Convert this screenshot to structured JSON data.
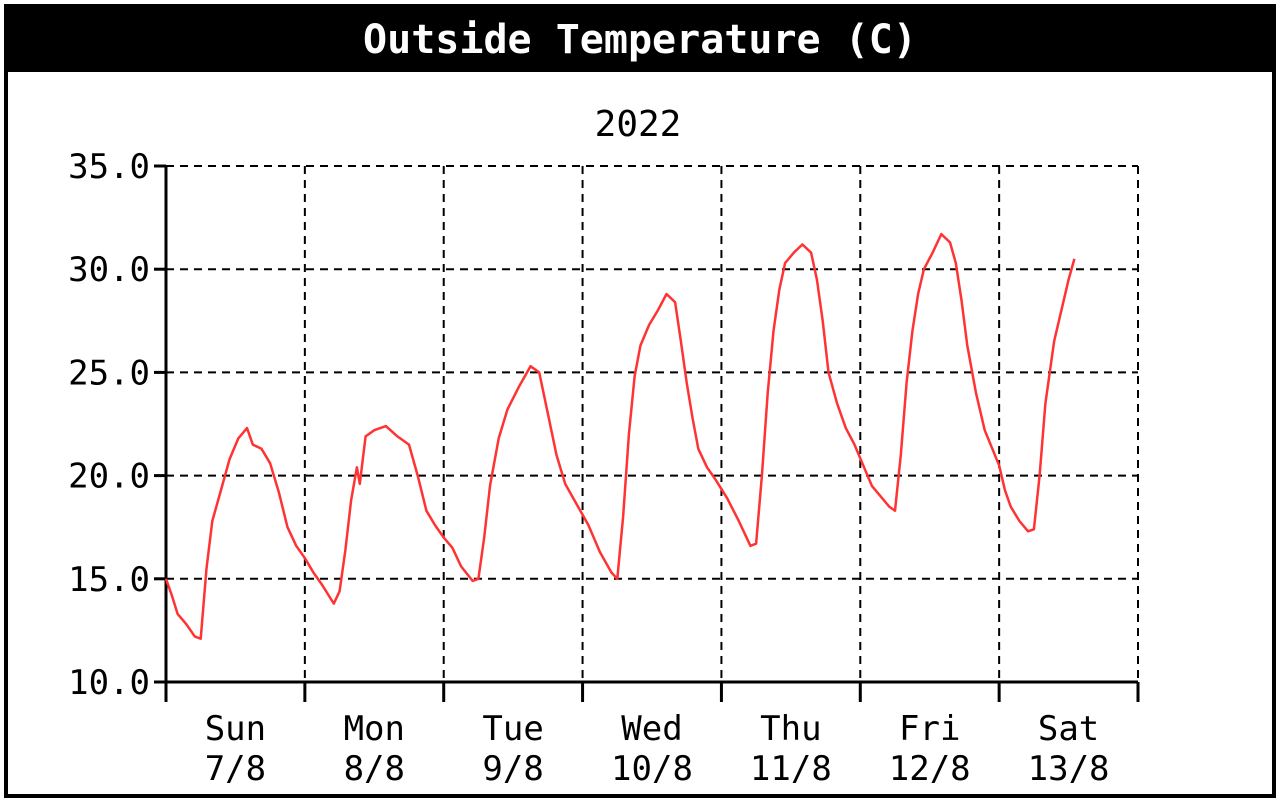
{
  "chart_data": {
    "type": "line",
    "title": "Outside Temperature (C)",
    "subtitle": "2022",
    "ylim": [
      10.0,
      35.0
    ],
    "y_ticks": [
      "10.0",
      "15.0",
      "20.0",
      "25.0",
      "30.0",
      "35.0"
    ],
    "x_range": [
      "2022-08-07T00:00",
      "2022-08-14T00:00"
    ],
    "x_ticks": [
      {
        "day": "Sun",
        "date": "7/8"
      },
      {
        "day": "Mon",
        "date": "8/8"
      },
      {
        "day": "Tue",
        "date": "9/8"
      },
      {
        "day": "Wed",
        "date": "10/8"
      },
      {
        "day": "Thu",
        "date": "11/8"
      },
      {
        "day": "Fri",
        "date": "12/8"
      },
      {
        "day": "Sat",
        "date": "13/8"
      }
    ],
    "grid": true,
    "series": [
      {
        "color": "#ff3333",
        "points": [
          [
            "2022-08-07T00:00",
            15.0
          ],
          [
            "2022-08-07T01:00",
            14.2
          ],
          [
            "2022-08-07T02:00",
            13.3
          ],
          [
            "2022-08-07T03:30",
            12.8
          ],
          [
            "2022-08-07T05:00",
            12.2
          ],
          [
            "2022-08-07T06:00",
            12.1
          ],
          [
            "2022-08-07T07:00",
            15.5
          ],
          [
            "2022-08-07T08:00",
            17.8
          ],
          [
            "2022-08-07T09:30",
            19.3
          ],
          [
            "2022-08-07T11:00",
            20.8
          ],
          [
            "2022-08-07T12:30",
            21.8
          ],
          [
            "2022-08-07T14:00",
            22.3
          ],
          [
            "2022-08-07T15:00",
            21.5
          ],
          [
            "2022-08-07T16:30",
            21.3
          ],
          [
            "2022-08-07T18:00",
            20.6
          ],
          [
            "2022-08-07T19:30",
            19.2
          ],
          [
            "2022-08-07T21:00",
            17.5
          ],
          [
            "2022-08-07T22:30",
            16.6
          ],
          [
            "2022-08-08T00:00",
            16.0
          ],
          [
            "2022-08-08T01:30",
            15.3
          ],
          [
            "2022-08-08T03:00",
            14.7
          ],
          [
            "2022-08-08T05:00",
            13.8
          ],
          [
            "2022-08-08T06:00",
            14.4
          ],
          [
            "2022-08-08T07:00",
            16.4
          ],
          [
            "2022-08-08T08:00",
            18.8
          ],
          [
            "2022-08-08T09:00",
            20.4
          ],
          [
            "2022-08-08T09:30",
            19.6
          ],
          [
            "2022-08-08T10:30",
            21.9
          ],
          [
            "2022-08-08T12:00",
            22.2
          ],
          [
            "2022-08-08T14:00",
            22.4
          ],
          [
            "2022-08-08T16:00",
            21.9
          ],
          [
            "2022-08-08T18:00",
            21.5
          ],
          [
            "2022-08-08T19:30",
            20.0
          ],
          [
            "2022-08-08T21:00",
            18.3
          ],
          [
            "2022-08-08T22:30",
            17.6
          ],
          [
            "2022-08-09T00:00",
            17.0
          ],
          [
            "2022-08-09T01:30",
            16.5
          ],
          [
            "2022-08-09T03:00",
            15.6
          ],
          [
            "2022-08-09T05:00",
            14.9
          ],
          [
            "2022-08-09T06:00",
            15.0
          ],
          [
            "2022-08-09T07:00",
            17.0
          ],
          [
            "2022-08-09T08:00",
            19.5
          ],
          [
            "2022-08-09T09:30",
            21.8
          ],
          [
            "2022-08-09T11:00",
            23.2
          ],
          [
            "2022-08-09T13:00",
            24.3
          ],
          [
            "2022-08-09T15:00",
            25.3
          ],
          [
            "2022-08-09T16:30",
            25.0
          ],
          [
            "2022-08-09T18:00",
            23.0
          ],
          [
            "2022-08-09T19:30",
            21.0
          ],
          [
            "2022-08-09T21:00",
            19.6
          ],
          [
            "2022-08-09T23:00",
            18.6
          ],
          [
            "2022-08-10T01:00",
            17.6
          ],
          [
            "2022-08-10T03:00",
            16.3
          ],
          [
            "2022-08-10T05:00",
            15.3
          ],
          [
            "2022-08-10T06:00",
            15.0
          ],
          [
            "2022-08-10T07:00",
            18.0
          ],
          [
            "2022-08-10T08:00",
            22.0
          ],
          [
            "2022-08-10T09:00",
            24.8
          ],
          [
            "2022-08-10T10:00",
            26.3
          ],
          [
            "2022-08-10T11:30",
            27.3
          ],
          [
            "2022-08-10T13:00",
            28.0
          ],
          [
            "2022-08-10T14:30",
            28.8
          ],
          [
            "2022-08-10T16:00",
            28.4
          ],
          [
            "2022-08-10T17:00",
            26.5
          ],
          [
            "2022-08-10T18:00",
            24.5
          ],
          [
            "2022-08-10T19:00",
            22.8
          ],
          [
            "2022-08-10T20:00",
            21.3
          ],
          [
            "2022-08-10T21:30",
            20.4
          ],
          [
            "2022-08-10T23:00",
            19.8
          ],
          [
            "2022-08-11T01:00",
            18.9
          ],
          [
            "2022-08-11T03:00",
            17.8
          ],
          [
            "2022-08-11T05:00",
            16.6
          ],
          [
            "2022-08-11T06:00",
            16.7
          ],
          [
            "2022-08-11T07:00",
            20.0
          ],
          [
            "2022-08-11T08:00",
            24.0
          ],
          [
            "2022-08-11T09:00",
            27.0
          ],
          [
            "2022-08-11T10:00",
            29.0
          ],
          [
            "2022-08-11T11:00",
            30.3
          ],
          [
            "2022-08-11T12:30",
            30.8
          ],
          [
            "2022-08-11T14:00",
            31.2
          ],
          [
            "2022-08-11T15:30",
            30.8
          ],
          [
            "2022-08-11T16:30",
            29.5
          ],
          [
            "2022-08-11T17:30",
            27.5
          ],
          [
            "2022-08-11T18:30",
            25.0
          ],
          [
            "2022-08-11T20:00",
            23.5
          ],
          [
            "2022-08-11T21:30",
            22.3
          ],
          [
            "2022-08-11T23:00",
            21.5
          ],
          [
            "2022-08-12T00:30",
            20.5
          ],
          [
            "2022-08-12T02:00",
            19.5
          ],
          [
            "2022-08-12T03:30",
            19.0
          ],
          [
            "2022-08-12T05:00",
            18.5
          ],
          [
            "2022-08-12T06:00",
            18.3
          ],
          [
            "2022-08-12T07:00",
            21.0
          ],
          [
            "2022-08-12T08:00",
            24.5
          ],
          [
            "2022-08-12T09:00",
            27.0
          ],
          [
            "2022-08-12T10:00",
            28.8
          ],
          [
            "2022-08-12T11:00",
            30.0
          ],
          [
            "2022-08-12T12:30",
            30.8
          ],
          [
            "2022-08-12T14:00",
            31.7
          ],
          [
            "2022-08-12T15:30",
            31.3
          ],
          [
            "2022-08-12T16:30",
            30.3
          ],
          [
            "2022-08-12T17:30",
            28.5
          ],
          [
            "2022-08-12T18:30",
            26.3
          ],
          [
            "2022-08-12T20:00",
            24.0
          ],
          [
            "2022-08-12T21:30",
            22.2
          ],
          [
            "2022-08-13T00:00",
            20.5
          ],
          [
            "2022-08-13T01:00",
            19.3
          ],
          [
            "2022-08-13T02:00",
            18.5
          ],
          [
            "2022-08-13T03:30",
            17.8
          ],
          [
            "2022-08-13T05:00",
            17.3
          ],
          [
            "2022-08-13T06:00",
            17.4
          ],
          [
            "2022-08-13T07:00",
            20.0
          ],
          [
            "2022-08-13T08:00",
            23.5
          ],
          [
            "2022-08-13T09:30",
            26.5
          ],
          [
            "2022-08-13T11:00",
            28.3
          ],
          [
            "2022-08-13T12:00",
            29.5
          ],
          [
            "2022-08-13T13:00",
            30.5
          ]
        ]
      }
    ]
  }
}
